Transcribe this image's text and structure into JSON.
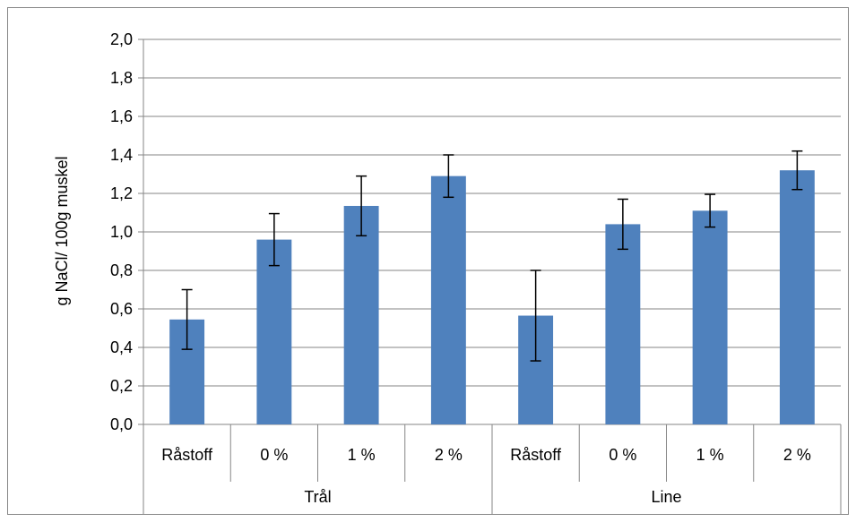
{
  "chart_data": {
    "type": "bar",
    "title": "",
    "xlabel": "",
    "ylabel": "g NaCl/ 100g muskel",
    "ylim": [
      0,
      2.0
    ],
    "ytick_step": 0.2,
    "yticks": [
      "0,0",
      "0,2",
      "0,4",
      "0,6",
      "0,8",
      "1,0",
      "1,2",
      "1,4",
      "1,6",
      "1,8",
      "2,0"
    ],
    "grid": true,
    "legend": "none",
    "bar_color": "#4F81BD",
    "grid_color": "#868686",
    "groups": [
      {
        "label": "Trål",
        "categories": [
          "Råstoff",
          "0 %",
          "1 %",
          "2 %"
        ]
      },
      {
        "label": "Line",
        "categories": [
          "Råstoff",
          "0 %",
          "1 %",
          "2 %"
        ]
      }
    ],
    "values": [
      0.545,
      0.96,
      1.135,
      1.29,
      0.565,
      1.04,
      1.11,
      1.32
    ],
    "error": [
      0.155,
      0.135,
      0.155,
      0.11,
      0.235,
      0.13,
      0.085,
      0.1
    ]
  }
}
